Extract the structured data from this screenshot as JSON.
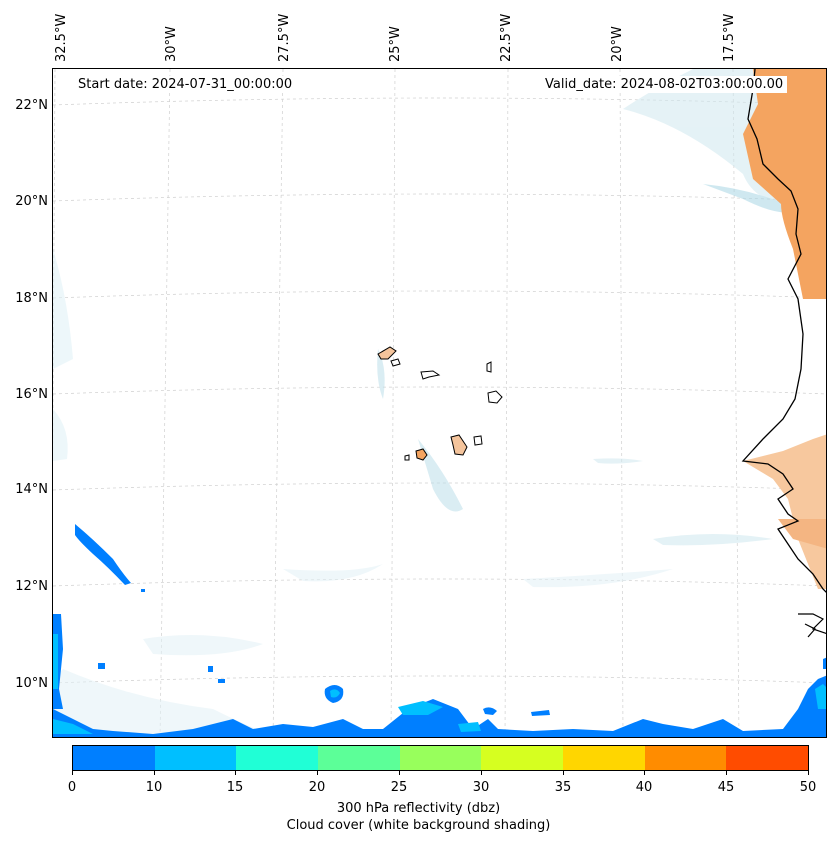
{
  "annotations": {
    "start_date": "Start date: 2024-07-31_00:00:00",
    "valid_date": "Valid_date: 2024-08-02T03:00:00.00"
  },
  "lon_labels": [
    "32.5°W",
    "30°W",
    "27.5°W",
    "25°W",
    "22.5°W",
    "20°W",
    "17.5°W"
  ],
  "lat_labels": [
    "22°N",
    "20°N",
    "18°N",
    "16°N",
    "14°N",
    "12°N",
    "10°N"
  ],
  "colorbar": {
    "ticks": [
      "0",
      "10",
      "15",
      "20",
      "25",
      "30",
      "35",
      "40",
      "45",
      "50"
    ],
    "colors": [
      "#007fff",
      "#00bfff",
      "#20ffd6",
      "#5cff98",
      "#98ff5c",
      "#d6ff20",
      "#ffd600",
      "#ff8c00",
      "#ff4c00"
    ],
    "label_line1": "300 hPa reflectivity (dbz)",
    "label_line2": "Cloud cover (white background shading)"
  },
  "map_colors": {
    "land_orange": "#f4a460",
    "land_light": "#f7c89e",
    "cloud_light": "#cfe8ef",
    "cloud_mid": "#a9d7e5",
    "refl_blue": "#007fff",
    "refl_cyan": "#00bfff"
  }
}
